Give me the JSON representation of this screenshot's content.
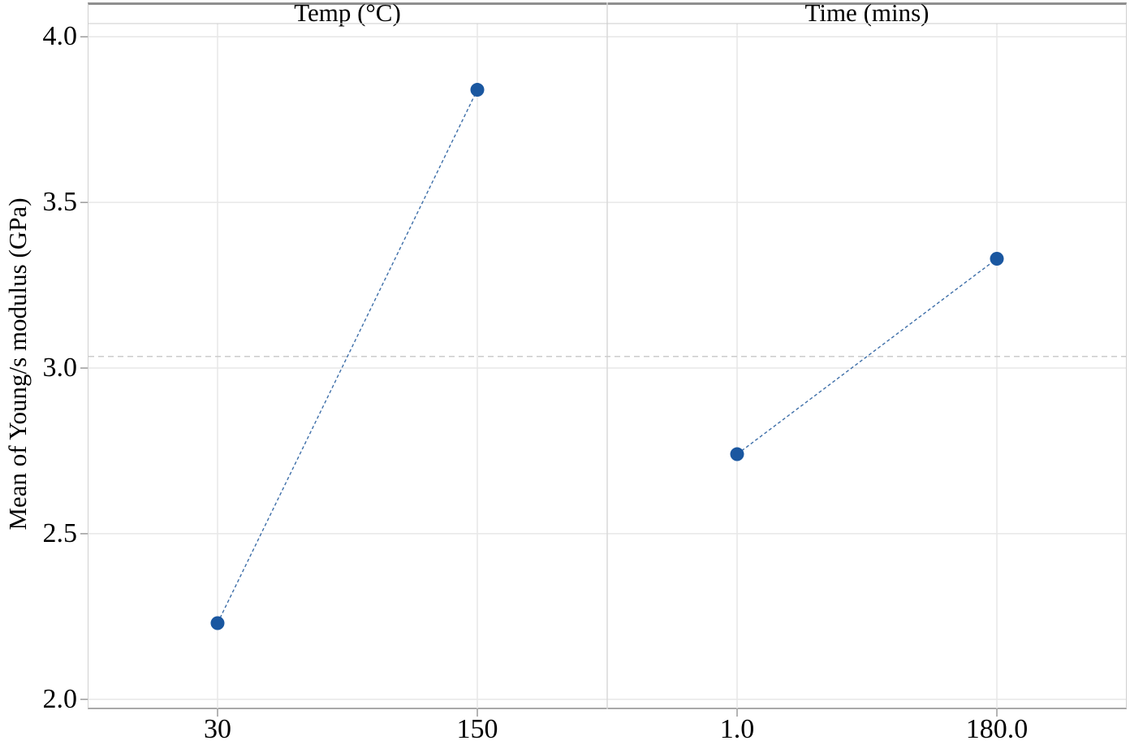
{
  "chart_data": {
    "type": "line",
    "chart_kind": "main-effects-plot",
    "title": "",
    "ylabel": "Mean of Young/s modulus (GPa)",
    "xlabel": "",
    "ylim": [
      1.97,
      4.04
    ],
    "yticks": [
      "2.0",
      "2.5",
      "3.0",
      "3.5",
      "4.0"
    ],
    "grid": true,
    "reference_mean": 3.035,
    "panels": [
      {
        "title": "Temp (°C)",
        "categories": [
          "30",
          "150"
        ],
        "values": [
          2.23,
          3.84
        ]
      },
      {
        "title": "Time (mins)",
        "categories": [
          "1.0",
          "180.0"
        ],
        "values": [
          2.74,
          3.33
        ]
      }
    ]
  },
  "colors": {
    "point": "#1a57a0",
    "series_line": "#3d6ea8",
    "gridline": "#e7e7e7",
    "panel_divider": "#d9d9d9",
    "header_line": "#cccccc",
    "tick_mark": "#9a9a9a",
    "reference_line": "#cccccc",
    "text": "#000000",
    "background": "#ffffff"
  }
}
